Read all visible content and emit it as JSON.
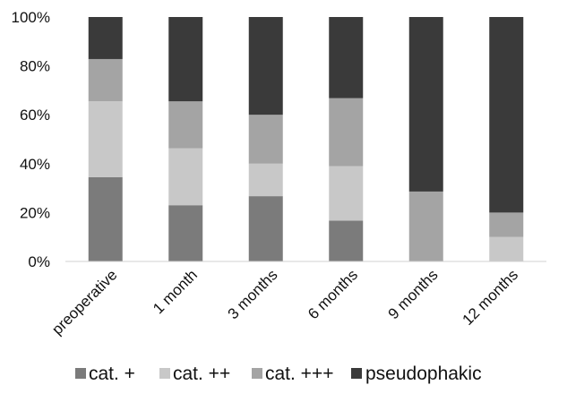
{
  "chart_data": {
    "type": "bar",
    "stacked": true,
    "percent_axis": true,
    "categories": [
      "preoperative",
      "1 month",
      "3 months",
      "6 months",
      "9 months",
      "12 months"
    ],
    "series": [
      {
        "name": "cat. +",
        "color": "#7b7b7b",
        "values": [
          34.5,
          23.0,
          26.7,
          16.7,
          0,
          0
        ]
      },
      {
        "name": "cat. ++",
        "color": "#c8c8c8",
        "values": [
          31.0,
          23.3,
          13.3,
          22.3,
          0,
          10.0
        ]
      },
      {
        "name": "cat. +++",
        "color": "#a4a4a4",
        "values": [
          17.3,
          19.2,
          20.0,
          27.8,
          28.6,
          10.0
        ]
      },
      {
        "name": "pseudophakic",
        "color": "#3a3a3a",
        "values": [
          17.2,
          34.5,
          40.0,
          33.2,
          71.4,
          80.0
        ]
      }
    ],
    "ylim": [
      0,
      100
    ],
    "yticks": [
      "0%",
      "20%",
      "40%",
      "60%",
      "80%",
      "100%"
    ],
    "title": "",
    "xlabel": "",
    "ylabel": "",
    "grid": false,
    "legend_position": "bottom"
  }
}
